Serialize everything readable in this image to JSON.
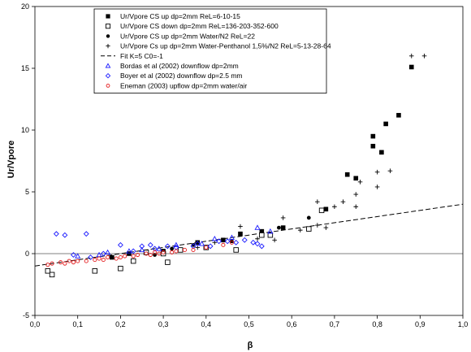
{
  "chart_data": {
    "type": "scatter",
    "title": "",
    "xlabel": "β",
    "ylabel": "Ur/Vpore",
    "xlim": [
      0,
      1
    ],
    "ylim": [
      -5,
      20
    ],
    "x_ticks": [
      "0,0",
      "0,1",
      "0,2",
      "0,3",
      "0,4",
      "0,5",
      "0,6",
      "0,7",
      "0,8",
      "0,9",
      "1,0"
    ],
    "y_ticks": [
      "-5",
      "0",
      "5",
      "10",
      "15",
      "20"
    ],
    "legend_position": "top",
    "series": [
      {
        "name": "Ur/Vpore CS up dp=2mm ReL=6-10-15",
        "marker": "filled-square",
        "color": "#000000",
        "points": [
          [
            0.18,
            -0.3
          ],
          [
            0.22,
            0.0
          ],
          [
            0.3,
            0.2
          ],
          [
            0.38,
            0.9
          ],
          [
            0.44,
            1.1
          ],
          [
            0.48,
            1.6
          ],
          [
            0.53,
            1.8
          ],
          [
            0.58,
            2.1
          ],
          [
            0.68,
            3.6
          ],
          [
            0.73,
            6.4
          ],
          [
            0.75,
            6.1
          ],
          [
            0.79,
            8.7
          ],
          [
            0.79,
            9.5
          ],
          [
            0.81,
            8.2
          ],
          [
            0.82,
            10.5
          ],
          [
            0.85,
            11.2
          ],
          [
            0.88,
            15.1
          ]
        ]
      },
      {
        "name": "Ur/Vpore  CS down dp=2mm ReL=136-203-352-600",
        "marker": "open-square",
        "color": "#000000",
        "points": [
          [
            0.03,
            -1.4
          ],
          [
            0.04,
            -1.7
          ],
          [
            0.14,
            -1.4
          ],
          [
            0.2,
            -1.2
          ],
          [
            0.23,
            -0.6
          ],
          [
            0.26,
            0.1
          ],
          [
            0.3,
            0.0
          ],
          [
            0.31,
            -0.7
          ],
          [
            0.34,
            0.3
          ],
          [
            0.4,
            0.5
          ],
          [
            0.47,
            0.3
          ],
          [
            0.53,
            1.5
          ],
          [
            0.55,
            1.5
          ],
          [
            0.64,
            2.0
          ],
          [
            0.67,
            3.5
          ]
        ]
      },
      {
        "name": "Ur/Vpore CS up dp=2mm Water/N2 ReL=22",
        "marker": "filled-circle",
        "color": "#000000",
        "points": [
          [
            0.28,
            -0.1
          ],
          [
            0.32,
            0.4
          ],
          [
            0.37,
            0.7
          ],
          [
            0.46,
            1.0
          ],
          [
            0.57,
            2.1
          ],
          [
            0.64,
            2.9
          ]
        ]
      },
      {
        "name": "Ur/Vpore Cs up dp=2mm Water-Penthanol 1,5%/N2 ReL=5-13-28-64",
        "marker": "plus",
        "color": "#000000",
        "points": [
          [
            0.38,
            0.5
          ],
          [
            0.42,
            0.9
          ],
          [
            0.48,
            2.2
          ],
          [
            0.52,
            1.2
          ],
          [
            0.56,
            1.1
          ],
          [
            0.58,
            2.9
          ],
          [
            0.62,
            1.9
          ],
          [
            0.66,
            2.3
          ],
          [
            0.66,
            4.2
          ],
          [
            0.68,
            2.1
          ],
          [
            0.7,
            3.8
          ],
          [
            0.72,
            4.2
          ],
          [
            0.75,
            3.8
          ],
          [
            0.75,
            4.8
          ],
          [
            0.76,
            5.8
          ],
          [
            0.8,
            5.4
          ],
          [
            0.8,
            6.6
          ],
          [
            0.83,
            6.7
          ],
          [
            0.88,
            16.0
          ],
          [
            0.91,
            16.0
          ]
        ]
      },
      {
        "name": "Fit K=5 C0=-1",
        "marker": "dashed-line",
        "color": "#000000",
        "points": [
          [
            0.0,
            -1.0
          ],
          [
            1.0,
            4.0
          ]
        ]
      },
      {
        "name": "Bordas et al (2002) downflow dp=2mm",
        "marker": "open-triangle",
        "color": "#1a1aff",
        "points": [
          [
            0.1,
            -0.2
          ],
          [
            0.15,
            -0.1
          ],
          [
            0.17,
            0.1
          ],
          [
            0.22,
            0.2
          ],
          [
            0.25,
            0.3
          ],
          [
            0.29,
            0.4
          ],
          [
            0.33,
            0.7
          ],
          [
            0.39,
            0.8
          ],
          [
            0.42,
            1.2
          ],
          [
            0.46,
            1.3
          ],
          [
            0.52,
            2.1
          ],
          [
            0.55,
            1.8
          ]
        ]
      },
      {
        "name": "Boyer et al (2002) downflow dp=2.5 mm",
        "marker": "open-diamond",
        "color": "#1a1aff",
        "points": [
          [
            0.05,
            1.6
          ],
          [
            0.07,
            1.5
          ],
          [
            0.09,
            -0.1
          ],
          [
            0.12,
            1.6
          ],
          [
            0.13,
            -0.3
          ],
          [
            0.16,
            0.0
          ],
          [
            0.2,
            0.7
          ],
          [
            0.23,
            0.2
          ],
          [
            0.25,
            0.6
          ],
          [
            0.27,
            0.7
          ],
          [
            0.28,
            0.4
          ],
          [
            0.31,
            0.6
          ],
          [
            0.33,
            0.5
          ],
          [
            0.37,
            0.6
          ],
          [
            0.38,
            0.8
          ],
          [
            0.41,
            0.6
          ],
          [
            0.43,
            1.0
          ],
          [
            0.45,
            1.0
          ],
          [
            0.47,
            0.9
          ],
          [
            0.49,
            1.1
          ],
          [
            0.51,
            0.9
          ],
          [
            0.52,
            0.8
          ],
          [
            0.53,
            0.6
          ]
        ]
      },
      {
        "name": "Eneman (2003) upflow dp=2mm water/air",
        "marker": "open-circle",
        "color": "#e41a1c",
        "points": [
          [
            0.03,
            -0.9
          ],
          [
            0.04,
            -0.8
          ],
          [
            0.06,
            -0.7
          ],
          [
            0.07,
            -0.8
          ],
          [
            0.08,
            -0.6
          ],
          [
            0.09,
            -0.7
          ],
          [
            0.1,
            -0.6
          ],
          [
            0.12,
            -0.6
          ],
          [
            0.14,
            -0.5
          ],
          [
            0.15,
            -0.4
          ],
          [
            0.16,
            -0.5
          ],
          [
            0.17,
            -0.3
          ],
          [
            0.19,
            -0.4
          ],
          [
            0.2,
            -0.3
          ],
          [
            0.21,
            -0.2
          ],
          [
            0.23,
            -0.2
          ],
          [
            0.24,
            -0.1
          ],
          [
            0.26,
            0.0
          ],
          [
            0.27,
            -0.1
          ],
          [
            0.28,
            0.1
          ],
          [
            0.29,
            0.0
          ],
          [
            0.3,
            0.1
          ],
          [
            0.32,
            0.1
          ],
          [
            0.33,
            0.2
          ],
          [
            0.35,
            0.3
          ],
          [
            0.37,
            0.3
          ],
          [
            0.4,
            0.5
          ],
          [
            0.44,
            0.7
          ],
          [
            0.46,
            0.9
          ]
        ]
      }
    ]
  }
}
